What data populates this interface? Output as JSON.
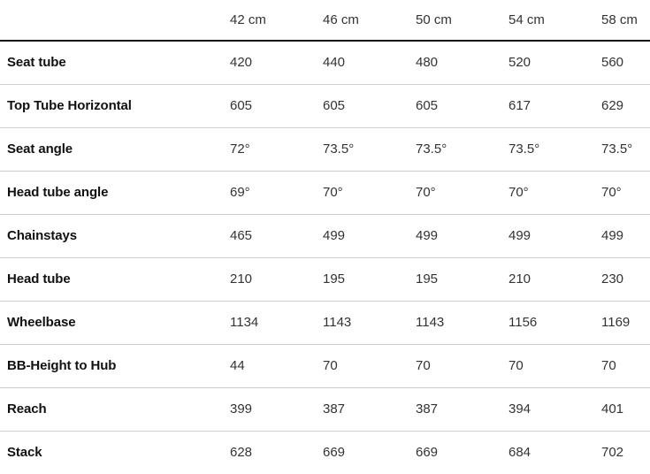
{
  "sizes": [
    "42 cm",
    "46 cm",
    "50 cm",
    "54 cm",
    "58 cm"
  ],
  "rows": [
    {
      "label": "Seat tube",
      "values": [
        "420",
        "440",
        "480",
        "520",
        "560"
      ]
    },
    {
      "label": "Top Tube Horizontal",
      "values": [
        "605",
        "605",
        "605",
        "617",
        "629"
      ]
    },
    {
      "label": "Seat angle",
      "values": [
        "72°",
        "73.5°",
        "73.5°",
        "73.5°",
        "73.5°"
      ]
    },
    {
      "label": "Head tube angle",
      "values": [
        "69°",
        "70°",
        "70°",
        "70°",
        "70°"
      ]
    },
    {
      "label": "Chainstays",
      "values": [
        "465",
        "499",
        "499",
        "499",
        "499"
      ]
    },
    {
      "label": "Head tube",
      "values": [
        "210",
        "195",
        "195",
        "210",
        "230"
      ]
    },
    {
      "label": "Wheelbase",
      "values": [
        "1134",
        "1143",
        "1143",
        "1156",
        "1169"
      ]
    },
    {
      "label": "BB-Height to Hub",
      "values": [
        "44",
        "70",
        "70",
        "70",
        "70"
      ]
    },
    {
      "label": "Reach",
      "values": [
        "399",
        "387",
        "387",
        "394",
        "401"
      ]
    },
    {
      "label": "Stack",
      "values": [
        "628",
        "669",
        "669",
        "684",
        "702"
      ]
    }
  ]
}
